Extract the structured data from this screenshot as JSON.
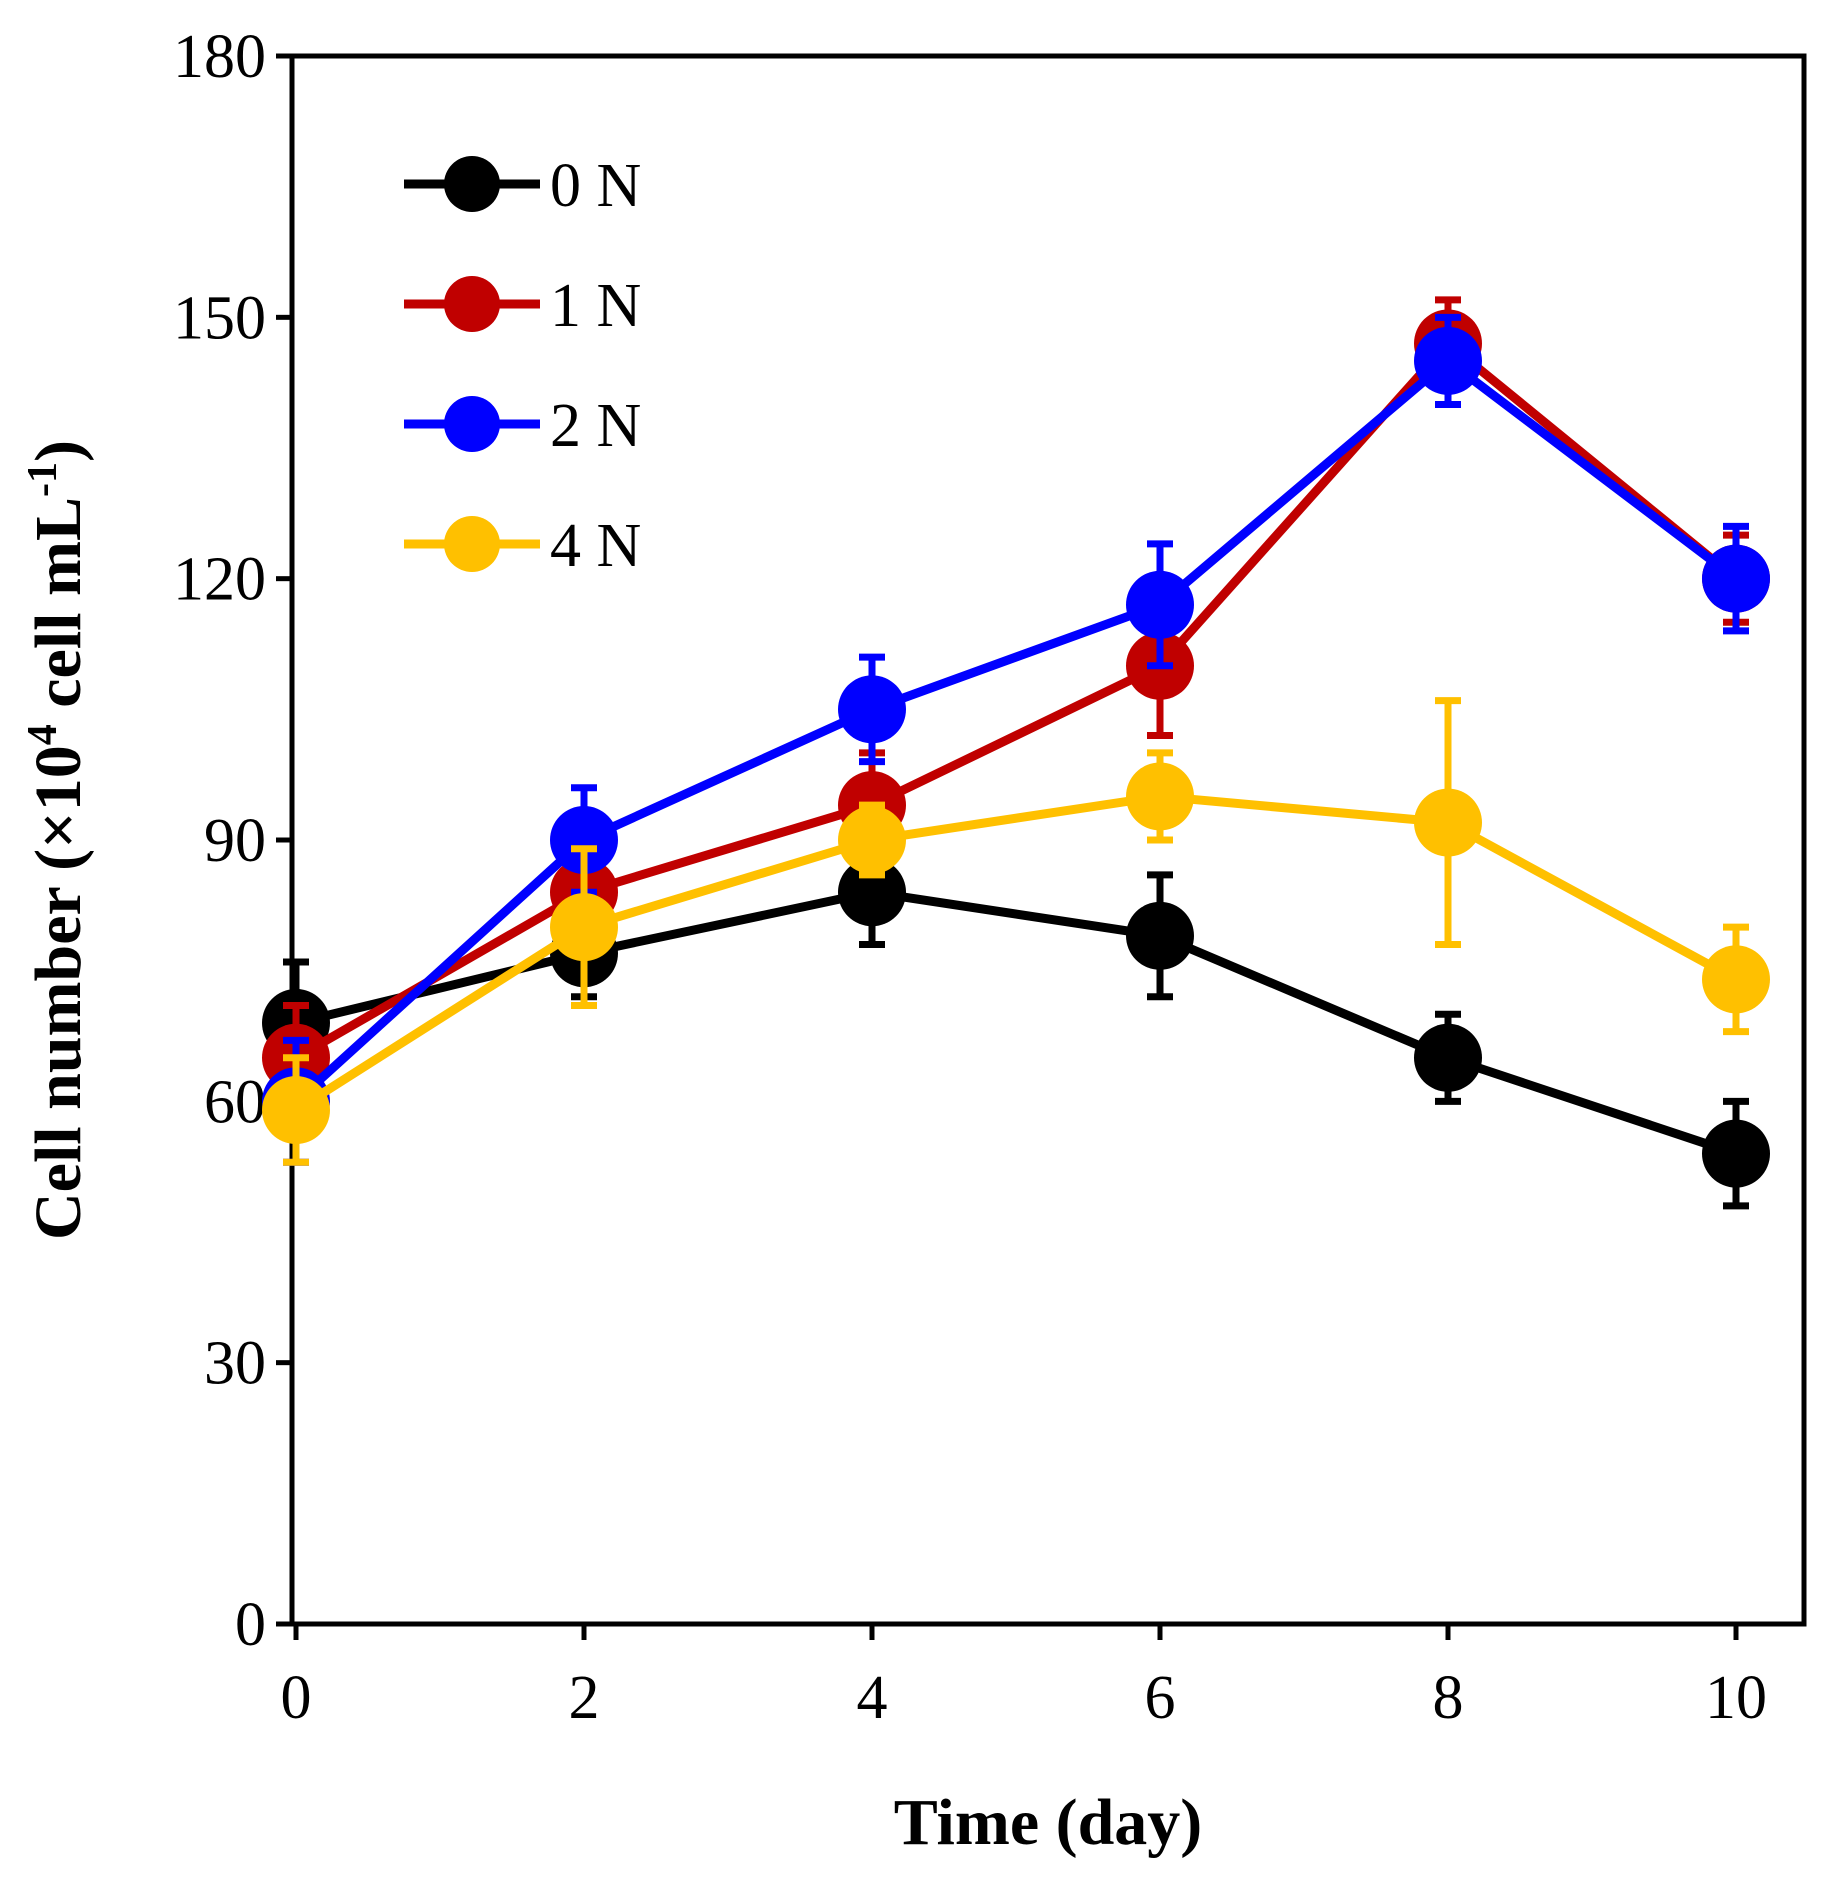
{
  "chart_data": {
    "type": "line",
    "title": "",
    "xlabel": "Time (day)",
    "ylabel": {
      "prefix": "Cell number (×10",
      "exp1": "4",
      "middle": " cell mL",
      "exp2": "-1",
      "suffix": ")"
    },
    "x": [
      0,
      2,
      4,
      6,
      8,
      10
    ],
    "xlim": [
      0,
      10
    ],
    "ylim": [
      0,
      180
    ],
    "xticks": [
      "0",
      "2",
      "4",
      "6",
      "8",
      "10"
    ],
    "yticks": [
      "0",
      "30",
      "60",
      "90",
      "120",
      "150",
      "180"
    ],
    "grid": false,
    "legend_position": "top-left",
    "series": [
      {
        "name": "0 N",
        "color": "#000000",
        "values": [
          69,
          77,
          84,
          79,
          65,
          54
        ],
        "errors": [
          7,
          5,
          6,
          7,
          5,
          6
        ]
      },
      {
        "name": "1 N",
        "color": "#c00000",
        "values": [
          65,
          84,
          94,
          110,
          147,
          120
        ],
        "errors": [
          6,
          5,
          6,
          8,
          5,
          5
        ]
      },
      {
        "name": "2 N",
        "color": "#0000ff",
        "values": [
          60,
          90,
          105,
          117,
          145,
          120
        ],
        "errors": [
          7,
          6,
          6,
          7,
          5,
          6
        ]
      },
      {
        "name": "4 N",
        "color": "#ffc000",
        "values": [
          59,
          80,
          90,
          95,
          92,
          74
        ],
        "errors": [
          6,
          9,
          4,
          5,
          14,
          6
        ]
      }
    ]
  }
}
